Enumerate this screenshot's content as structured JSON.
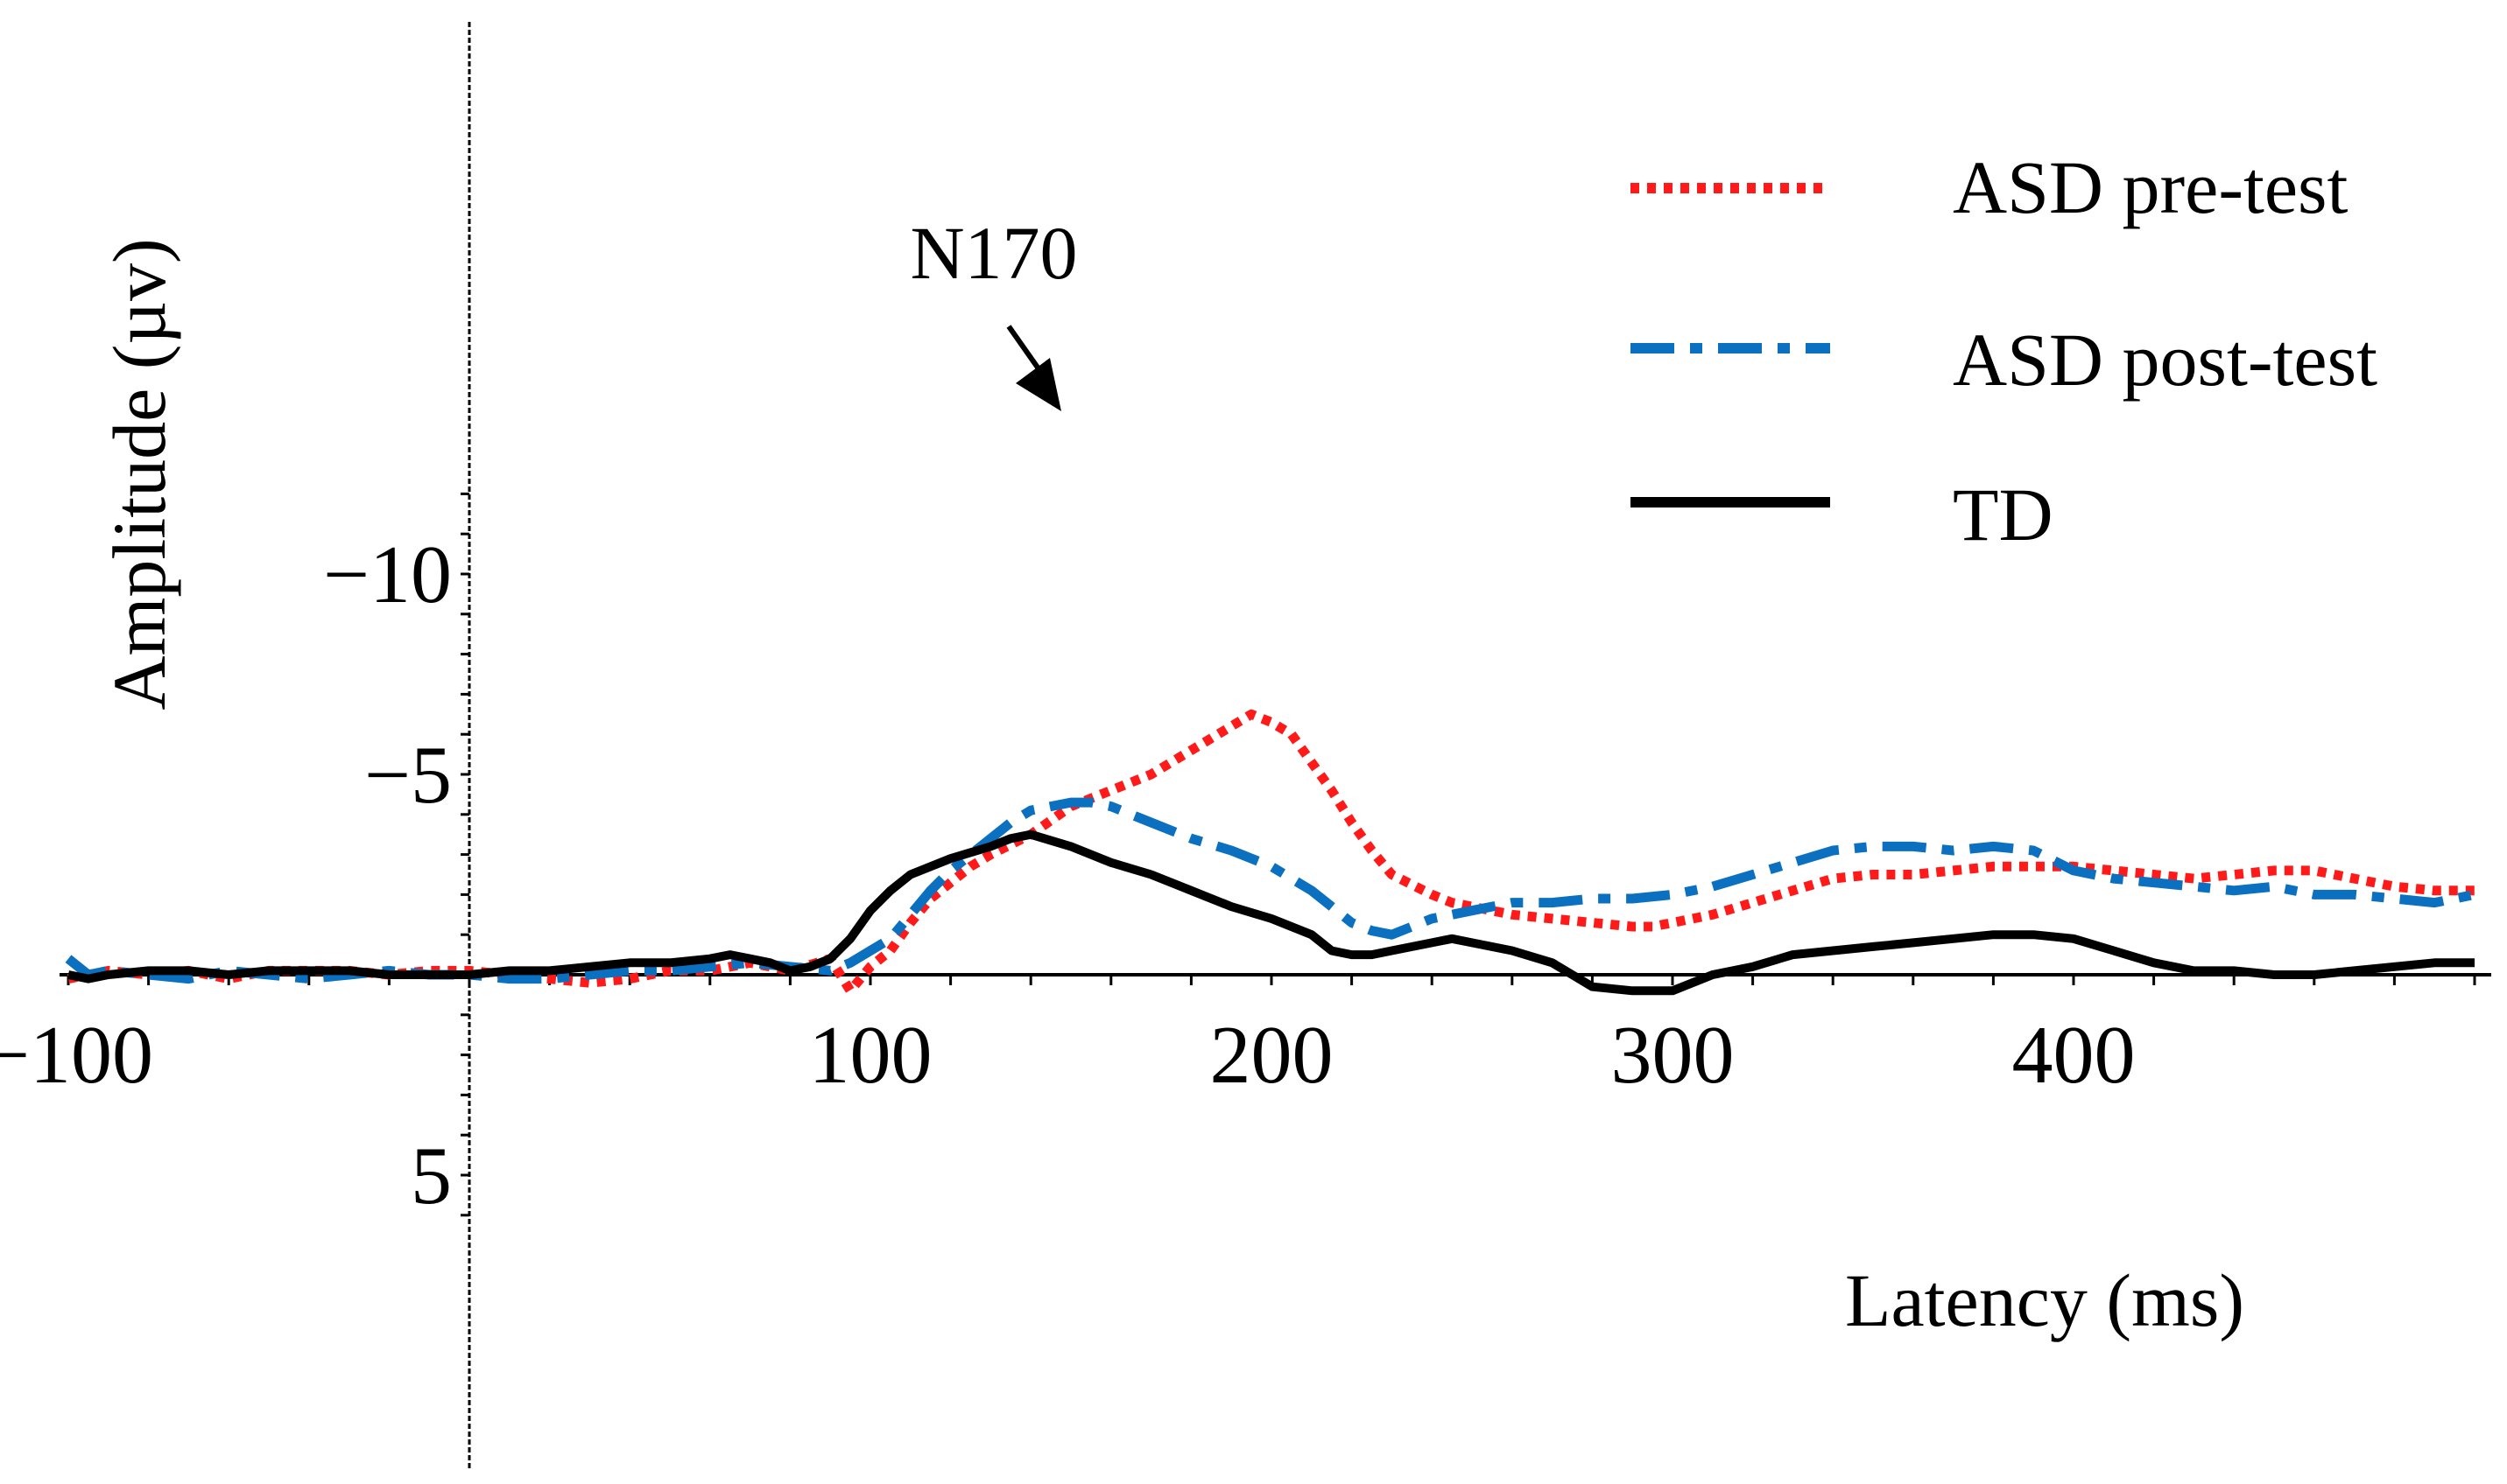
{
  "chart_data": {
    "type": "line",
    "title": "",
    "xlabel": "Latency (ms)",
    "ylabel": "Amplitude (µv)",
    "xlim": [
      -100,
      500
    ],
    "ylim": [
      -12,
      6
    ],
    "y_inverted": true,
    "x_ticks": [
      -100,
      100,
      200,
      300,
      400
    ],
    "x_tick_labels": [
      "−100",
      "100",
      "200",
      "300",
      "400"
    ],
    "y_ticks": [
      -10,
      -5,
      5
    ],
    "y_tick_labels": [
      "−10",
      "−5",
      "5"
    ],
    "annotation": {
      "text": "N170",
      "x": 135,
      "y": -7.0
    },
    "legend_position": "top-right",
    "series": [
      {
        "name": "ASD pre-test",
        "color": "#ff1a1a",
        "style": "dotted",
        "points": [
          [
            -100,
            0.1
          ],
          [
            -90,
            -0.1
          ],
          [
            -80,
            0.0
          ],
          [
            -70,
            -0.1
          ],
          [
            -60,
            0.1
          ],
          [
            -50,
            -0.1
          ],
          [
            -40,
            -0.1
          ],
          [
            -30,
            -0.1
          ],
          [
            -20,
            0.0
          ],
          [
            -10,
            -0.1
          ],
          [
            0,
            -0.1
          ],
          [
            10,
            0.0
          ],
          [
            20,
            0.1
          ],
          [
            30,
            0.2
          ],
          [
            40,
            0.1
          ],
          [
            50,
            -0.1
          ],
          [
            60,
            -0.1
          ],
          [
            70,
            -0.3
          ],
          [
            75,
            -0.2
          ],
          [
            80,
            -0.1
          ],
          [
            90,
            -0.4
          ],
          [
            95,
            0.4
          ],
          [
            100,
            -0.2
          ],
          [
            105,
            -0.6
          ],
          [
            110,
            -1.3
          ],
          [
            115,
            -1.9
          ],
          [
            120,
            -2.3
          ],
          [
            125,
            -2.7
          ],
          [
            130,
            -3.0
          ],
          [
            140,
            -3.5
          ],
          [
            150,
            -4.2
          ],
          [
            160,
            -4.6
          ],
          [
            170,
            -5.0
          ],
          [
            180,
            -5.6
          ],
          [
            190,
            -6.2
          ],
          [
            195,
            -6.5
          ],
          [
            200,
            -6.3
          ],
          [
            205,
            -6.0
          ],
          [
            210,
            -5.3
          ],
          [
            215,
            -4.6
          ],
          [
            220,
            -3.8
          ],
          [
            225,
            -3.1
          ],
          [
            230,
            -2.5
          ],
          [
            240,
            -2.0
          ],
          [
            245,
            -1.8
          ],
          [
            250,
            -1.7
          ],
          [
            260,
            -1.5
          ],
          [
            270,
            -1.4
          ],
          [
            280,
            -1.3
          ],
          [
            290,
            -1.2
          ],
          [
            295,
            -1.2
          ],
          [
            300,
            -1.3
          ],
          [
            310,
            -1.5
          ],
          [
            320,
            -1.8
          ],
          [
            330,
            -2.1
          ],
          [
            340,
            -2.4
          ],
          [
            350,
            -2.5
          ],
          [
            360,
            -2.5
          ],
          [
            370,
            -2.6
          ],
          [
            380,
            -2.7
          ],
          [
            390,
            -2.7
          ],
          [
            400,
            -2.7
          ],
          [
            410,
            -2.6
          ],
          [
            420,
            -2.5
          ],
          [
            430,
            -2.4
          ],
          [
            440,
            -2.5
          ],
          [
            450,
            -2.6
          ],
          [
            460,
            -2.6
          ],
          [
            470,
            -2.4
          ],
          [
            480,
            -2.2
          ],
          [
            490,
            -2.1
          ],
          [
            500,
            -2.1
          ]
        ]
      },
      {
        "name": "ASD post-test",
        "color": "#0b70c0",
        "style": "dashdot",
        "points": [
          [
            -100,
            -0.4
          ],
          [
            -95,
            0.0
          ],
          [
            -90,
            -0.1
          ],
          [
            -80,
            0.0
          ],
          [
            -70,
            0.1
          ],
          [
            -60,
            -0.1
          ],
          [
            -50,
            0.0
          ],
          [
            -40,
            0.1
          ],
          [
            -30,
            0.0
          ],
          [
            -20,
            -0.1
          ],
          [
            -10,
            0.0
          ],
          [
            0,
            0.0
          ],
          [
            10,
            0.1
          ],
          [
            20,
            0.1
          ],
          [
            30,
            0.0
          ],
          [
            40,
            -0.1
          ],
          [
            50,
            -0.1
          ],
          [
            60,
            -0.2
          ],
          [
            70,
            -0.3
          ],
          [
            80,
            -0.2
          ],
          [
            90,
            -0.1
          ],
          [
            95,
            -0.3
          ],
          [
            100,
            -0.6
          ],
          [
            105,
            -0.9
          ],
          [
            110,
            -1.5
          ],
          [
            115,
            -2.1
          ],
          [
            120,
            -2.6
          ],
          [
            125,
            -3.0
          ],
          [
            130,
            -3.4
          ],
          [
            135,
            -3.8
          ],
          [
            140,
            -4.1
          ],
          [
            145,
            -4.2
          ],
          [
            150,
            -4.3
          ],
          [
            155,
            -4.3
          ],
          [
            160,
            -4.2
          ],
          [
            170,
            -3.8
          ],
          [
            180,
            -3.4
          ],
          [
            190,
            -3.1
          ],
          [
            200,
            -2.7
          ],
          [
            210,
            -2.1
          ],
          [
            215,
            -1.7
          ],
          [
            220,
            -1.3
          ],
          [
            225,
            -1.1
          ],
          [
            230,
            -1.0
          ],
          [
            240,
            -1.4
          ],
          [
            250,
            -1.6
          ],
          [
            260,
            -1.8
          ],
          [
            270,
            -1.8
          ],
          [
            280,
            -1.9
          ],
          [
            290,
            -1.9
          ],
          [
            300,
            -2.0
          ],
          [
            310,
            -2.2
          ],
          [
            320,
            -2.5
          ],
          [
            330,
            -2.8
          ],
          [
            340,
            -3.1
          ],
          [
            350,
            -3.2
          ],
          [
            360,
            -3.2
          ],
          [
            370,
            -3.1
          ],
          [
            380,
            -3.2
          ],
          [
            390,
            -3.1
          ],
          [
            400,
            -2.6
          ],
          [
            410,
            -2.4
          ],
          [
            420,
            -2.3
          ],
          [
            430,
            -2.2
          ],
          [
            440,
            -2.1
          ],
          [
            450,
            -2.2
          ],
          [
            460,
            -2.0
          ],
          [
            470,
            -2.0
          ],
          [
            480,
            -1.9
          ],
          [
            490,
            -1.8
          ],
          [
            500,
            -2.0
          ]
        ]
      },
      {
        "name": "TD",
        "color": "#000000",
        "style": "solid",
        "points": [
          [
            -100,
            0.0
          ],
          [
            -95,
            0.1
          ],
          [
            -90,
            0.0
          ],
          [
            -80,
            -0.1
          ],
          [
            -70,
            -0.1
          ],
          [
            -60,
            0.0
          ],
          [
            -50,
            -0.1
          ],
          [
            -40,
            -0.1
          ],
          [
            -30,
            -0.1
          ],
          [
            -20,
            0.0
          ],
          [
            -10,
            0.0
          ],
          [
            0,
            0.0
          ],
          [
            10,
            -0.1
          ],
          [
            20,
            -0.1
          ],
          [
            30,
            -0.2
          ],
          [
            40,
            -0.3
          ],
          [
            50,
            -0.3
          ],
          [
            60,
            -0.4
          ],
          [
            65,
            -0.5
          ],
          [
            70,
            -0.4
          ],
          [
            75,
            -0.3
          ],
          [
            80,
            -0.1
          ],
          [
            85,
            -0.2
          ],
          [
            90,
            -0.4
          ],
          [
            95,
            -0.9
          ],
          [
            100,
            -1.6
          ],
          [
            105,
            -2.1
          ],
          [
            110,
            -2.5
          ],
          [
            120,
            -2.9
          ],
          [
            130,
            -3.2
          ],
          [
            135,
            -3.4
          ],
          [
            140,
            -3.5
          ],
          [
            150,
            -3.2
          ],
          [
            160,
            -2.8
          ],
          [
            170,
            -2.5
          ],
          [
            180,
            -2.1
          ],
          [
            190,
            -1.7
          ],
          [
            200,
            -1.4
          ],
          [
            210,
            -1.0
          ],
          [
            215,
            -0.6
          ],
          [
            220,
            -0.5
          ],
          [
            225,
            -0.5
          ],
          [
            230,
            -0.6
          ],
          [
            240,
            -0.8
          ],
          [
            245,
            -0.9
          ],
          [
            250,
            -0.8
          ],
          [
            260,
            -0.6
          ],
          [
            270,
            -0.3
          ],
          [
            275,
            0.0
          ],
          [
            280,
            0.3
          ],
          [
            290,
            0.4
          ],
          [
            300,
            0.4
          ],
          [
            310,
            0.0
          ],
          [
            320,
            -0.2
          ],
          [
            330,
            -0.5
          ],
          [
            340,
            -0.6
          ],
          [
            350,
            -0.7
          ],
          [
            360,
            -0.8
          ],
          [
            370,
            -0.9
          ],
          [
            380,
            -1.0
          ],
          [
            390,
            -1.0
          ],
          [
            400,
            -0.9
          ],
          [
            410,
            -0.6
          ],
          [
            420,
            -0.3
          ],
          [
            430,
            -0.1
          ],
          [
            440,
            -0.1
          ],
          [
            450,
            0.0
          ],
          [
            460,
            0.0
          ],
          [
            470,
            -0.1
          ],
          [
            480,
            -0.2
          ],
          [
            490,
            -0.3
          ],
          [
            500,
            -0.3
          ]
        ]
      }
    ]
  }
}
